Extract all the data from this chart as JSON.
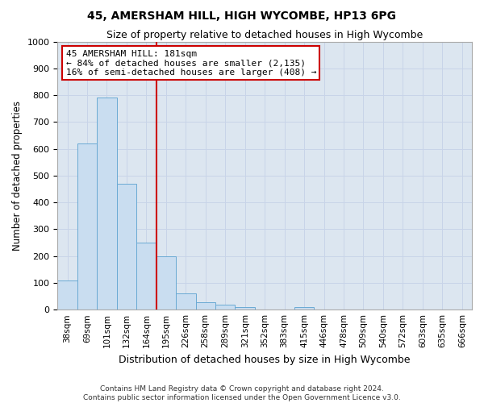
{
  "title": "45, AMERSHAM HILL, HIGH WYCOMBE, HP13 6PG",
  "subtitle": "Size of property relative to detached houses in High Wycombe",
  "xlabel": "Distribution of detached houses by size in High Wycombe",
  "ylabel": "Number of detached properties",
  "categories": [
    "38sqm",
    "69sqm",
    "101sqm",
    "132sqm",
    "164sqm",
    "195sqm",
    "226sqm",
    "258sqm",
    "289sqm",
    "321sqm",
    "352sqm",
    "383sqm",
    "415sqm",
    "446sqm",
    "478sqm",
    "509sqm",
    "540sqm",
    "572sqm",
    "603sqm",
    "635sqm",
    "666sqm"
  ],
  "values": [
    110,
    620,
    790,
    470,
    250,
    200,
    60,
    28,
    18,
    10,
    0,
    0,
    10,
    0,
    0,
    0,
    0,
    0,
    0,
    0,
    0
  ],
  "bar_color": "#c9ddf0",
  "bar_edge_color": "#6aaad4",
  "red_line_x": 4.5,
  "annotation_text": "45 AMERSHAM HILL: 181sqm\n← 84% of detached houses are smaller (2,135)\n16% of semi-detached houses are larger (408) →",
  "annotation_box_facecolor": "#ffffff",
  "annotation_box_edgecolor": "#cc0000",
  "red_line_color": "#cc0000",
  "grid_color": "#c8d4e8",
  "background_color": "#dce6f0",
  "ylim": [
    0,
    1000
  ],
  "yticks": [
    0,
    100,
    200,
    300,
    400,
    500,
    600,
    700,
    800,
    900,
    1000
  ],
  "footer1": "Contains HM Land Registry data © Crown copyright and database right 2024.",
  "footer2": "Contains public sector information licensed under the Open Government Licence v3.0."
}
